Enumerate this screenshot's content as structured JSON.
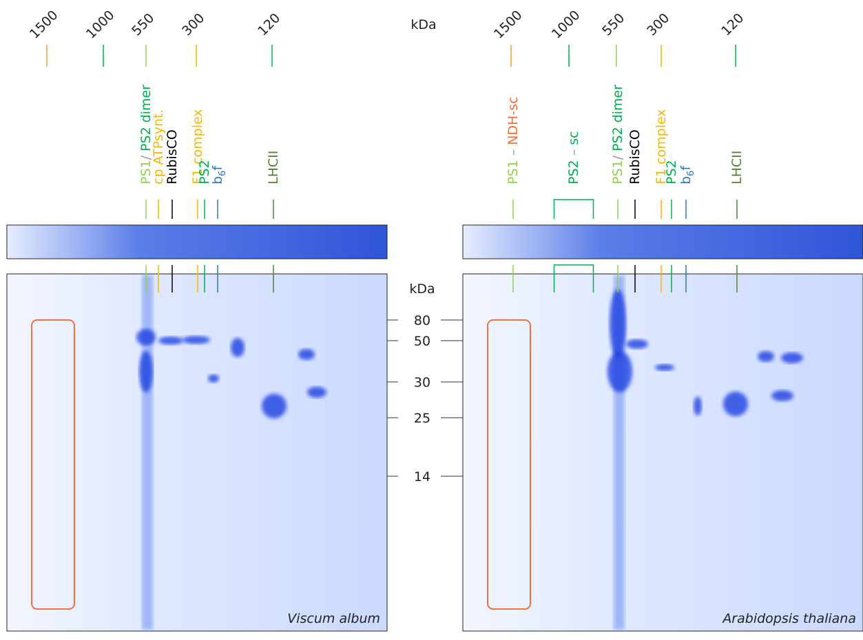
{
  "kda_top": "kDa",
  "kda_mid": "kDa",
  "mw_markers": [
    "80",
    "50",
    "30",
    "25",
    "14"
  ],
  "panels": [
    {
      "species": "Viscum album",
      "size_markers": [
        {
          "label": "1500",
          "color": "#f0a030"
        },
        {
          "label": "1000",
          "color": "#00b050"
        },
        {
          "label": "550",
          "color": "#92d050"
        },
        {
          "label": "300",
          "color": "#f5b800"
        },
        {
          "label": "120",
          "color": "#00b050"
        }
      ],
      "complexes": [
        {
          "parts": [
            {
              "text": "PS1",
              "color": "#92d050"
            },
            {
              "text": "/ ",
              "color": "#999999"
            },
            {
              "text": "PS2 dimer",
              "color": "#00b050"
            }
          ]
        },
        {
          "parts": [
            {
              "text": "cp ATPsynt.",
              "color": "#f5b800"
            }
          ]
        },
        {
          "parts": [
            {
              "text": "RubisCO",
              "color": "#000000"
            }
          ]
        },
        {
          "parts": [
            {
              "text": "F1 complex",
              "color": "#f5b800"
            }
          ]
        },
        {
          "parts": [
            {
              "text": "PS2",
              "color": "#00b050"
            }
          ]
        },
        {
          "parts": [
            {
              "text": "b",
              "color": "#2e75b6"
            },
            {
              "text": "6",
              "color": "#2e75b6",
              "sub": true
            },
            {
              "text": "f",
              "color": "#2e75b6"
            }
          ]
        },
        {
          "parts": [
            {
              "text": "LHCII",
              "color": "#548235"
            }
          ]
        }
      ]
    },
    {
      "species": "Arabidopsis thaliana",
      "size_markers": [
        {
          "label": "1500",
          "color": "#f0a030"
        },
        {
          "label": "1000",
          "color": "#00b050"
        },
        {
          "label": "550",
          "color": "#92d050"
        },
        {
          "label": "300",
          "color": "#f5b800"
        },
        {
          "label": "120",
          "color": "#00b050"
        }
      ],
      "complexes": [
        {
          "parts": [
            {
              "text": "PS1",
              "color": "#92d050"
            },
            {
              "text": " – ",
              "color": "#999999"
            },
            {
              "text": "NDH-sc",
              "color": "#f07030"
            }
          ]
        },
        {
          "parts": [
            {
              "text": "PS2",
              "color": "#00b050"
            },
            {
              "text": " – ",
              "color": "#999999"
            },
            {
              "text": "sc",
              "color": "#00b050"
            }
          ]
        },
        {
          "parts": [
            {
              "text": "PS1",
              "color": "#92d050"
            },
            {
              "text": "/ ",
              "color": "#999999"
            },
            {
              "text": "PS2 dimer",
              "color": "#00b050"
            }
          ]
        },
        {
          "parts": [
            {
              "text": "RubisCO",
              "color": "#000000"
            }
          ]
        },
        {
          "parts": [
            {
              "text": "F1 complex",
              "color": "#f5b800"
            }
          ]
        },
        {
          "parts": [
            {
              "text": "PS2",
              "color": "#00b050"
            }
          ]
        },
        {
          "parts": [
            {
              "text": "b",
              "color": "#2e75b6"
            },
            {
              "text": "6",
              "color": "#2e75b6",
              "sub": true
            },
            {
              "text": "f",
              "color": "#2e75b6"
            }
          ]
        },
        {
          "parts": [
            {
              "text": "LHCII",
              "color": "#548235"
            }
          ]
        }
      ]
    }
  ]
}
